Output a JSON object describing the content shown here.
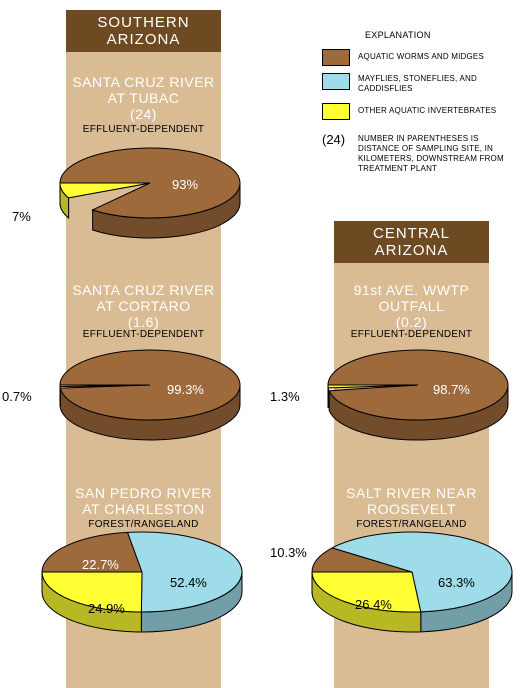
{
  "legend": {
    "title": "EXPLANATION",
    "items": [
      {
        "label": "AQUATIC WORMS AND MIDGES",
        "color": "#9e6a3c"
      },
      {
        "label": "MAYFLIES, STONEFLIES, AND CADDISFLIES",
        "color": "#9fdcea"
      },
      {
        "label": "OTHER AQUATIC INVERTEBRATES",
        "color": "#ffff33"
      }
    ],
    "note_symbol": "(24)",
    "note_text": "NUMBER IN PARENTHESES IS DISTANCE OF SAMPLING SITE, IN KILOMETERS, DOWNSTREAM FROM TREATMENT PLANT"
  },
  "regions": [
    {
      "title_line1": "SOUTHERN",
      "title_line2": "ARIZONA"
    },
    {
      "title_line1": "CENTRAL",
      "title_line2": "ARIZONA"
    }
  ],
  "chart_data": [
    {
      "type": "pie",
      "site_line1": "SANTA CRUZ RIVER",
      "site_line2": "AT TUBAC",
      "distance": "(24)",
      "land_use": "EFFLUENT-DEPENDENT",
      "slices": [
        {
          "category": "AQUATIC WORMS AND MIDGES",
          "value": 93,
          "label": "93%"
        },
        {
          "category": "OTHER AQUATIC INVERTEBRATES",
          "value": 7,
          "label": "7%"
        }
      ]
    },
    {
      "type": "pie",
      "site_line1": "SANTA CRUZ RIVER",
      "site_line2": "AT CORTARO",
      "distance": "(1.6)",
      "land_use": "EFFLUENT-DEPENDENT",
      "slices": [
        {
          "category": "AQUATIC WORMS AND MIDGES",
          "value": 99.3,
          "label": "99.3%"
        },
        {
          "category": "OTHER AQUATIC INVERTEBRATES",
          "value": 0.7,
          "label": "0.7%"
        }
      ]
    },
    {
      "type": "pie",
      "site_line1": "SAN PEDRO RIVER",
      "site_line2": "AT CHARLESTON",
      "distance": "",
      "land_use": "FOREST/RANGELAND",
      "slices": [
        {
          "category": "AQUATIC WORMS AND MIDGES",
          "value": 22.7,
          "label": "22.7%"
        },
        {
          "category": "MAYFLIES, STONEFLIES, AND CADDISFLIES",
          "value": 52.4,
          "label": "52.4%"
        },
        {
          "category": "OTHER AQUATIC INVERTEBRATES",
          "value": 24.9,
          "label": "24.9%"
        }
      ]
    },
    {
      "type": "pie",
      "site_line1": "91st AVE. WWTP",
      "site_line2": "OUTFALL",
      "distance": "(0.2)",
      "land_use": "EFFLUENT-DEPENDENT",
      "slices": [
        {
          "category": "AQUATIC WORMS AND MIDGES",
          "value": 98.7,
          "label": "98.7%"
        },
        {
          "category": "OTHER AQUATIC INVERTEBRATES",
          "value": 1.3,
          "label": "1.3%"
        }
      ]
    },
    {
      "type": "pie",
      "site_line1": "SALT RIVER NEAR",
      "site_line2": "ROOSEVELT",
      "distance": "",
      "land_use": "FOREST/RANGELAND",
      "slices": [
        {
          "category": "AQUATIC WORMS AND MIDGES",
          "value": 10.3,
          "label": "10.3%"
        },
        {
          "category": "MAYFLIES, STONEFLIES, AND CADDISFLIES",
          "value": 63.3,
          "label": "63.3%"
        },
        {
          "category": "OTHER AQUATIC INVERTEBRATES",
          "value": 26.4,
          "label": "26.4%"
        }
      ]
    }
  ]
}
